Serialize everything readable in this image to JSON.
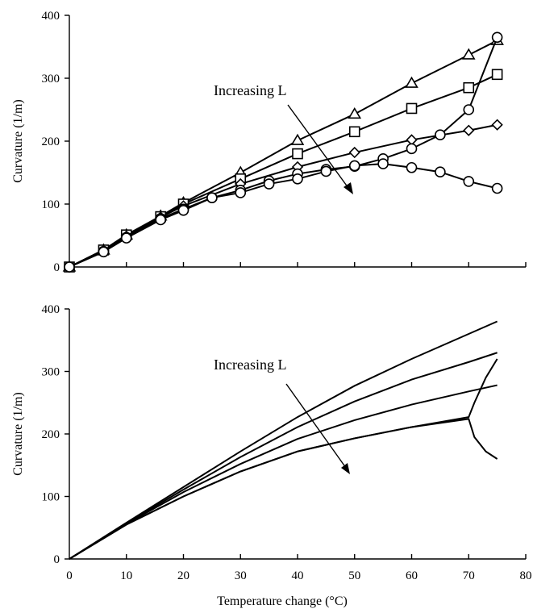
{
  "chart_data": [
    {
      "type": "line",
      "panel": "top",
      "title": "",
      "xlabel": "",
      "ylabel": "Curvature (1/m)",
      "xlim": [
        0,
        80
      ],
      "ylim": [
        0,
        400
      ],
      "yticks": [
        "0",
        "100",
        "200",
        "300",
        "400"
      ],
      "xticks": [],
      "grid": false,
      "legend": "none",
      "annotation": {
        "text": "Increasing L",
        "arrow": "pointing down-right"
      },
      "series": [
        {
          "marker": "triangle",
          "x": [
            0,
            6,
            10,
            16,
            20,
            30,
            40,
            50,
            60,
            70,
            75
          ],
          "y": [
            0,
            27,
            51,
            81,
            102,
            150,
            201,
            243,
            292,
            337,
            360
          ]
        },
        {
          "marker": "square",
          "x": [
            0,
            6,
            10,
            16,
            20,
            30,
            40,
            50,
            60,
            70,
            75
          ],
          "y": [
            0,
            27,
            51,
            80,
            100,
            140,
            180,
            215,
            252,
            285,
            306
          ]
        },
        {
          "marker": "diamond",
          "x": [
            0,
            6,
            10,
            16,
            20,
            30,
            40,
            50,
            60,
            70,
            75
          ],
          "y": [
            0,
            26,
            49,
            79,
            97,
            132,
            159,
            182,
            202,
            217,
            226
          ]
        },
        {
          "marker": "circle",
          "x": [
            0,
            6,
            10,
            16,
            20,
            25,
            30,
            35,
            40,
            45,
            50,
            55,
            60,
            65,
            70,
            75
          ],
          "y": [
            0,
            25,
            47,
            77,
            92,
            110,
            122,
            137,
            148,
            155,
            160,
            172,
            188,
            210,
            250,
            365
          ]
        },
        {
          "marker": "circle",
          "x": [
            0,
            6,
            10,
            16,
            20,
            25,
            30,
            35,
            40,
            45,
            50,
            55,
            60,
            65,
            70,
            75
          ],
          "y": [
            0,
            24,
            46,
            75,
            90,
            110,
            118,
            132,
            140,
            152,
            161,
            164,
            158,
            151,
            136,
            125
          ]
        }
      ]
    },
    {
      "type": "line",
      "panel": "bottom",
      "title": "",
      "xlabel": "Temperature change (°C)",
      "ylabel": "Curvature (1/m)",
      "xlim": [
        0,
        80
      ],
      "ylim": [
        0,
        400
      ],
      "yticks": [
        "0",
        "100",
        "200",
        "300",
        "400"
      ],
      "xticks": [
        "0",
        "10",
        "20",
        "30",
        "40",
        "50",
        "60",
        "70",
        "80"
      ],
      "grid": false,
      "legend": "none",
      "annotation": {
        "text": "Increasing L",
        "arrow": "pointing down-right"
      },
      "series": [
        {
          "x": [
            0,
            10,
            20,
            30,
            40,
            50,
            60,
            70,
            75
          ],
          "y": [
            0,
            58,
            115,
            172,
            227,
            277,
            320,
            360,
            380
          ]
        },
        {
          "x": [
            0,
            10,
            20,
            30,
            40,
            50,
            60,
            70,
            75
          ],
          "y": [
            0,
            57,
            111,
            163,
            211,
            252,
            287,
            315,
            330
          ]
        },
        {
          "x": [
            0,
            10,
            20,
            30,
            40,
            50,
            60,
            70,
            75
          ],
          "y": [
            0,
            56,
            107,
            152,
            192,
            222,
            247,
            268,
            278
          ]
        },
        {
          "x": [
            0,
            10,
            20,
            30,
            40,
            50,
            60,
            70,
            71,
            73,
            75
          ],
          "y": [
            0,
            55,
            100,
            140,
            172,
            193,
            211,
            227,
            250,
            290,
            320
          ]
        },
        {
          "x": [
            0,
            10,
            20,
            30,
            40,
            50,
            60,
            70,
            71,
            73,
            75
          ],
          "y": [
            0,
            55,
            100,
            140,
            172,
            193,
            211,
            224,
            195,
            172,
            160
          ]
        }
      ]
    }
  ]
}
